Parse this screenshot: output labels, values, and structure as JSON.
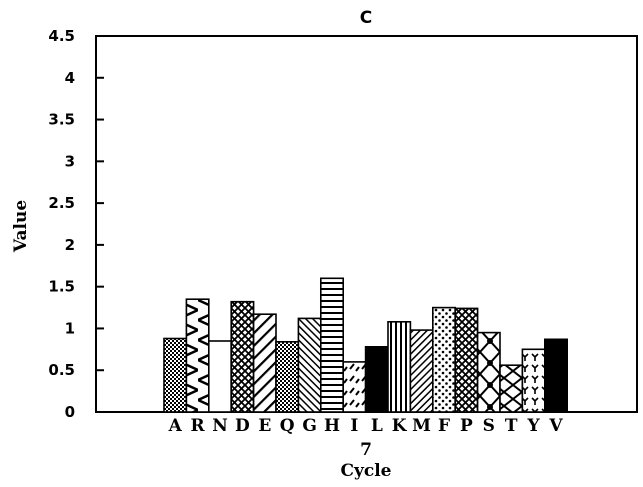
{
  "chart_data": {
    "type": "bar",
    "title": "C",
    "xlabel": "Cycle",
    "x_group_label": "7",
    "ylabel": "Value",
    "ylim": [
      0,
      4.5
    ],
    "yticks": [
      "0",
      "0.5",
      "1",
      "1.5",
      "2",
      "2.5",
      "3",
      "3.5",
      "4",
      "4.5"
    ],
    "grid": false,
    "categories": [
      "A",
      "R",
      "N",
      "D",
      "E",
      "Q",
      "G",
      "H",
      "I",
      "L",
      "K",
      "M",
      "F",
      "P",
      "S",
      "T",
      "Y",
      "V"
    ],
    "values": [
      0.88,
      1.35,
      0.85,
      1.32,
      1.17,
      0.84,
      1.12,
      1.6,
      0.6,
      0.78,
      1.08,
      0.98,
      1.25,
      1.24,
      0.95,
      0.56,
      0.75,
      0.87
    ],
    "patterns": [
      "dots-dense",
      "zigzag",
      "blank",
      "crosshatch",
      "diag-wide",
      "dots-dense",
      "diag-fine",
      "horizontal",
      "dashes",
      "solid",
      "vertical",
      "diag-back",
      "dots-sparse",
      "crosshatch",
      "diamond",
      "zigzag-fine",
      "tee",
      "solid"
    ]
  }
}
